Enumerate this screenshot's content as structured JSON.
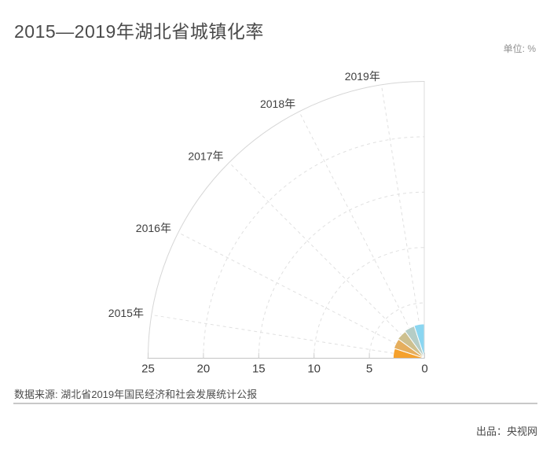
{
  "page": {
    "title": "2015—2019年湖北省城镇化率",
    "unit_label": "单位: %",
    "source_label": "数据来源: 湖北省2019年国民经济和社会发展统计公报",
    "producer_label": "出品：央视网"
  },
  "chart_data": {
    "type": "bar",
    "coordinate": "polar-quarter-rose",
    "title": "2015—2019年湖北省城镇化率",
    "unit": "%",
    "categories": [
      "2015年",
      "2016年",
      "2017年",
      "2018年",
      "2019年"
    ],
    "values": [
      2.85,
      2.92,
      2.98,
      3.05,
      3.1
    ],
    "colors": [
      "#F5A12D",
      "#E5AE5D",
      "#CDC08F",
      "#B5CDC6",
      "#8AD6F1"
    ],
    "radial_axis": {
      "ticks": [
        25,
        20,
        15,
        10,
        5,
        0
      ],
      "max": 25,
      "dashed_grid_radii": [
        5,
        10,
        15,
        20
      ]
    },
    "angular_axis": {
      "start_deg": 180,
      "end_deg": 90,
      "sector_deg": 18,
      "label_at": "sector-midpoint"
    },
    "legend": false,
    "grid": true
  }
}
